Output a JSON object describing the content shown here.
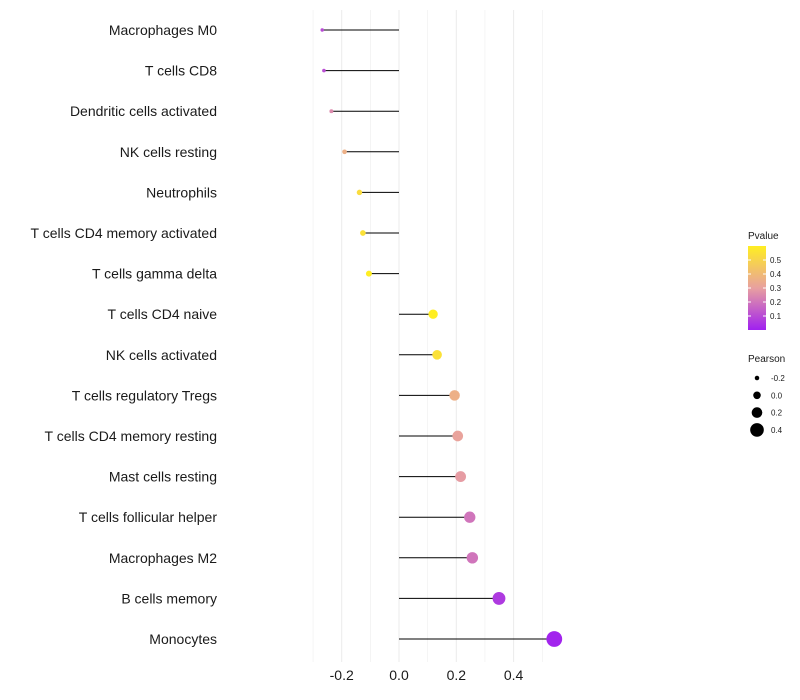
{
  "chart_data": {
    "type": "lollipop",
    "categories": [
      "Macrophages M0",
      "T cells CD8",
      "Dendritic cells activated",
      "NK cells resting",
      "Neutrophils",
      "T cells CD4 memory activated",
      "T cells gamma delta",
      "T cells CD4 naive",
      "NK cells activated",
      "T cells regulatory  Tregs ",
      "T cells CD4 memory resting",
      "Mast cells resting",
      "T cells follicular helper",
      "Macrophages M2",
      "B cells memory",
      "Monocytes"
    ],
    "pearson": [
      -0.268,
      -0.262,
      -0.236,
      -0.19,
      -0.138,
      -0.126,
      -0.105,
      0.119,
      0.133,
      0.194,
      0.205,
      0.215,
      0.247,
      0.256,
      0.349,
      0.542
    ],
    "pvalue": [
      0.1,
      0.11,
      0.25,
      0.36,
      0.53,
      0.55,
      0.6,
      0.6,
      0.55,
      0.36,
      0.31,
      0.29,
      0.2,
      0.2,
      0.06,
      0.01
    ],
    "xlim": [
      -0.3,
      0.57
    ],
    "x_ticks": [
      -0.2,
      0.0,
      0.2,
      0.4
    ],
    "x_tick_labels": [
      "-0.2",
      "0.0",
      "0.2",
      "0.4"
    ],
    "legend_color": {
      "title": "Pvalue",
      "ticks": [
        0.1,
        0.2,
        0.3,
        0.4,
        0.5
      ],
      "tick_labels": [
        "0.1",
        "0.2",
        "0.3",
        "0.4",
        "0.5"
      ],
      "range": [
        0.0,
        0.6
      ]
    },
    "legend_size": {
      "title": "Pearson",
      "values": [
        -0.2,
        0.0,
        0.2,
        0.4
      ],
      "labels": [
        "-0.2",
        "0.0",
        "0.2",
        "0.4"
      ]
    },
    "colors": {
      "low": "#a020f0",
      "mid": "#e8a0a0",
      "high": "#ffee22",
      "segment": "#000000",
      "grid": "#ebebeb"
    }
  }
}
